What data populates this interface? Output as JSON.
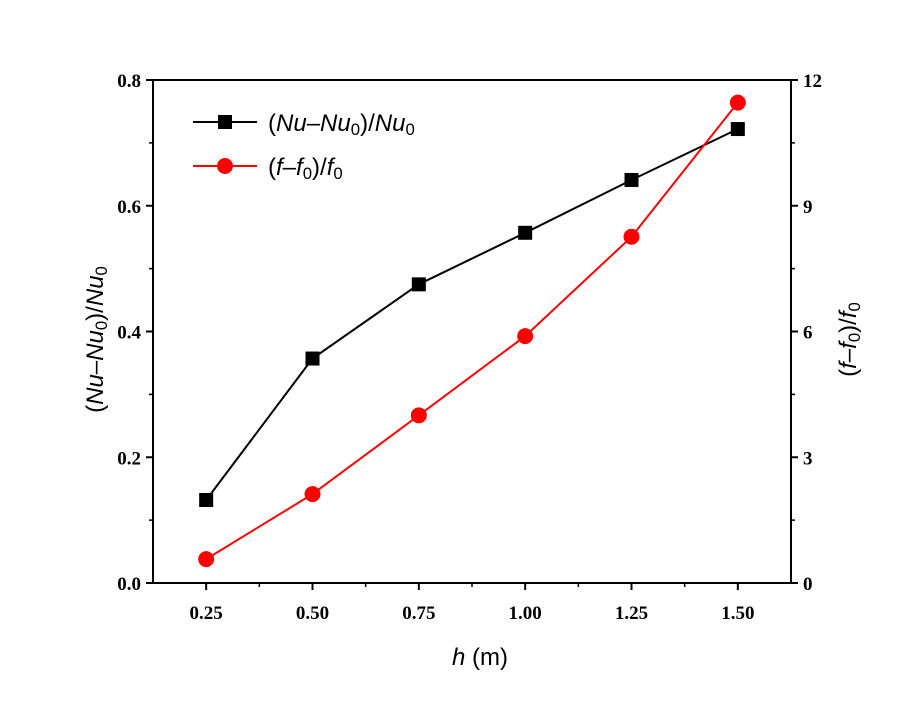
{
  "chart_data": {
    "type": "line",
    "x": [
      0.25,
      0.5,
      0.75,
      1.0,
      1.25,
      1.5
    ],
    "x_tick_labels": [
      "0.25",
      "0.50",
      "0.75",
      "1.00",
      "1.25",
      "1.50"
    ],
    "xlim": [
      0.125,
      1.625
    ],
    "xlabel_var": "h",
    "xlabel_unit": " (m)",
    "y_left": {
      "lim": [
        0,
        0.8
      ],
      "ticks": [
        0.0,
        0.2,
        0.4,
        0.6,
        0.8
      ],
      "tick_labels": [
        "0.0",
        "0.2",
        "0.4",
        "0.6",
        "0.8"
      ],
      "label_parts": [
        {
          "t": "(",
          "i": false,
          "sub": false
        },
        {
          "t": "Nu",
          "i": true,
          "sub": false
        },
        {
          "t": "–",
          "i": false,
          "sub": false
        },
        {
          "t": "Nu",
          "i": true,
          "sub": false
        },
        {
          "t": "0",
          "i": false,
          "sub": true
        },
        {
          "t": ")/",
          "i": false,
          "sub": false
        },
        {
          "t": "Nu",
          "i": true,
          "sub": false
        },
        {
          "t": "0",
          "i": false,
          "sub": true
        }
      ]
    },
    "y_right": {
      "lim": [
        0,
        12
      ],
      "ticks": [
        0,
        3,
        6,
        9,
        12
      ],
      "tick_labels": [
        "0",
        "3",
        "6",
        "9",
        "12"
      ],
      "label_parts": [
        {
          "t": "(",
          "i": false,
          "sub": false
        },
        {
          "t": "f",
          "i": true,
          "sub": false
        },
        {
          "t": "–",
          "i": false,
          "sub": false
        },
        {
          "t": "f",
          "i": true,
          "sub": false
        },
        {
          "t": "0",
          "i": false,
          "sub": true
        },
        {
          "t": ")/",
          "i": false,
          "sub": false
        },
        {
          "t": "f",
          "i": true,
          "sub": false
        },
        {
          "t": "0",
          "i": false,
          "sub": true
        }
      ]
    },
    "series": [
      {
        "name": "(Nu–Nu0)/Nu0",
        "axis": "left",
        "color": "#000000",
        "marker": "square",
        "values": [
          0.132,
          0.357,
          0.475,
          0.557,
          0.641,
          0.722
        ],
        "legend_parts": [
          {
            "t": "(",
            "i": false,
            "sub": false
          },
          {
            "t": "Nu",
            "i": true,
            "sub": false
          },
          {
            "t": "–",
            "i": false,
            "sub": false
          },
          {
            "t": "Nu",
            "i": true,
            "sub": false
          },
          {
            "t": "0",
            "i": false,
            "sub": true
          },
          {
            "t": ")/",
            "i": false,
            "sub": false
          },
          {
            "t": "Nu",
            "i": true,
            "sub": false
          },
          {
            "t": "0",
            "i": false,
            "sub": true
          }
        ]
      },
      {
        "name": "(f–f0)/f0",
        "axis": "right",
        "color": "#ff0000",
        "marker": "circle",
        "values": [
          0.57,
          2.12,
          4.0,
          5.89,
          8.26,
          11.46
        ],
        "legend_parts": [
          {
            "t": "(",
            "i": false,
            "sub": false
          },
          {
            "t": "f",
            "i": true,
            "sub": false
          },
          {
            "t": "–",
            "i": false,
            "sub": false
          },
          {
            "t": "f",
            "i": true,
            "sub": false
          },
          {
            "t": "0",
            "i": false,
            "sub": true
          },
          {
            "t": ")/",
            "i": false,
            "sub": false
          },
          {
            "t": "f",
            "i": true,
            "sub": false
          },
          {
            "t": "0",
            "i": false,
            "sub": true
          }
        ]
      }
    ],
    "legend_position": "top-left",
    "grid": false
  }
}
